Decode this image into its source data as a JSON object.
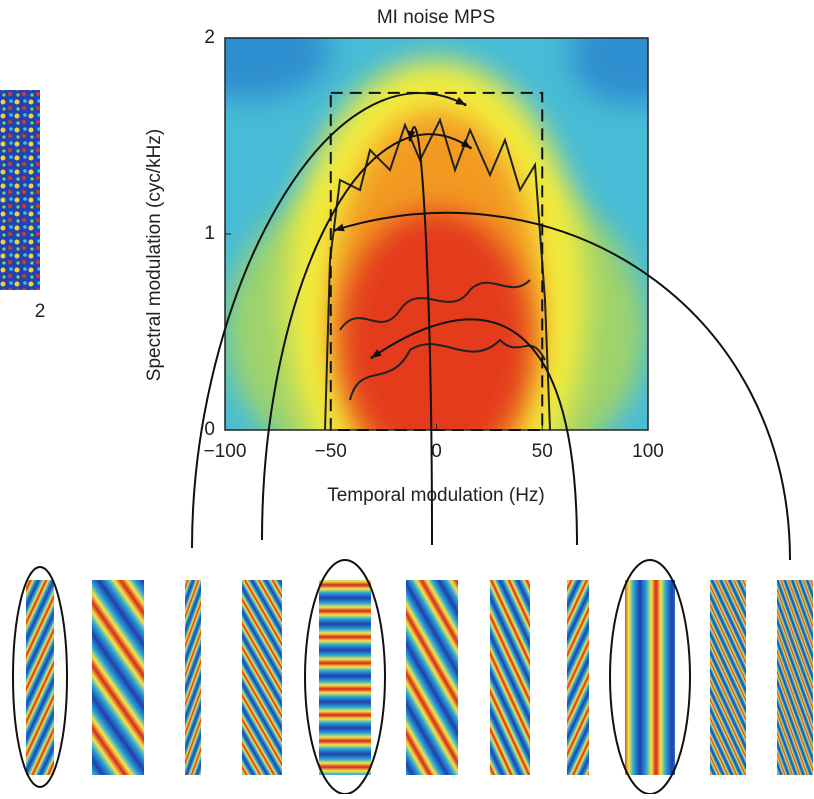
{
  "chart_data": {
    "type": "heatmap",
    "title": "MI noise MPS",
    "x_label": "Temporal modulation (Hz)",
    "y_label": "Spectral modulation (cyc/kHz)",
    "xlim": [
      -100,
      100
    ],
    "xticks": [
      {
        "value": -100,
        "label": "−100"
      },
      {
        "value": -50,
        "label": "−50"
      },
      0,
      50,
      100
    ],
    "ylim": [
      0,
      2
    ],
    "yticks": [
      0,
      1,
      2
    ],
    "region": {
      "x": [
        -50,
        50
      ],
      "y": [
        0,
        1.72
      ]
    },
    "arrow_targets": {
      "x": [
        -12.5,
        16,
        13.5,
        -48,
        -30.5
      ],
      "y": [
        1.48,
        1.44,
        1.66,
        1.02,
        0.37
      ]
    },
    "side_label": "2"
  }
}
